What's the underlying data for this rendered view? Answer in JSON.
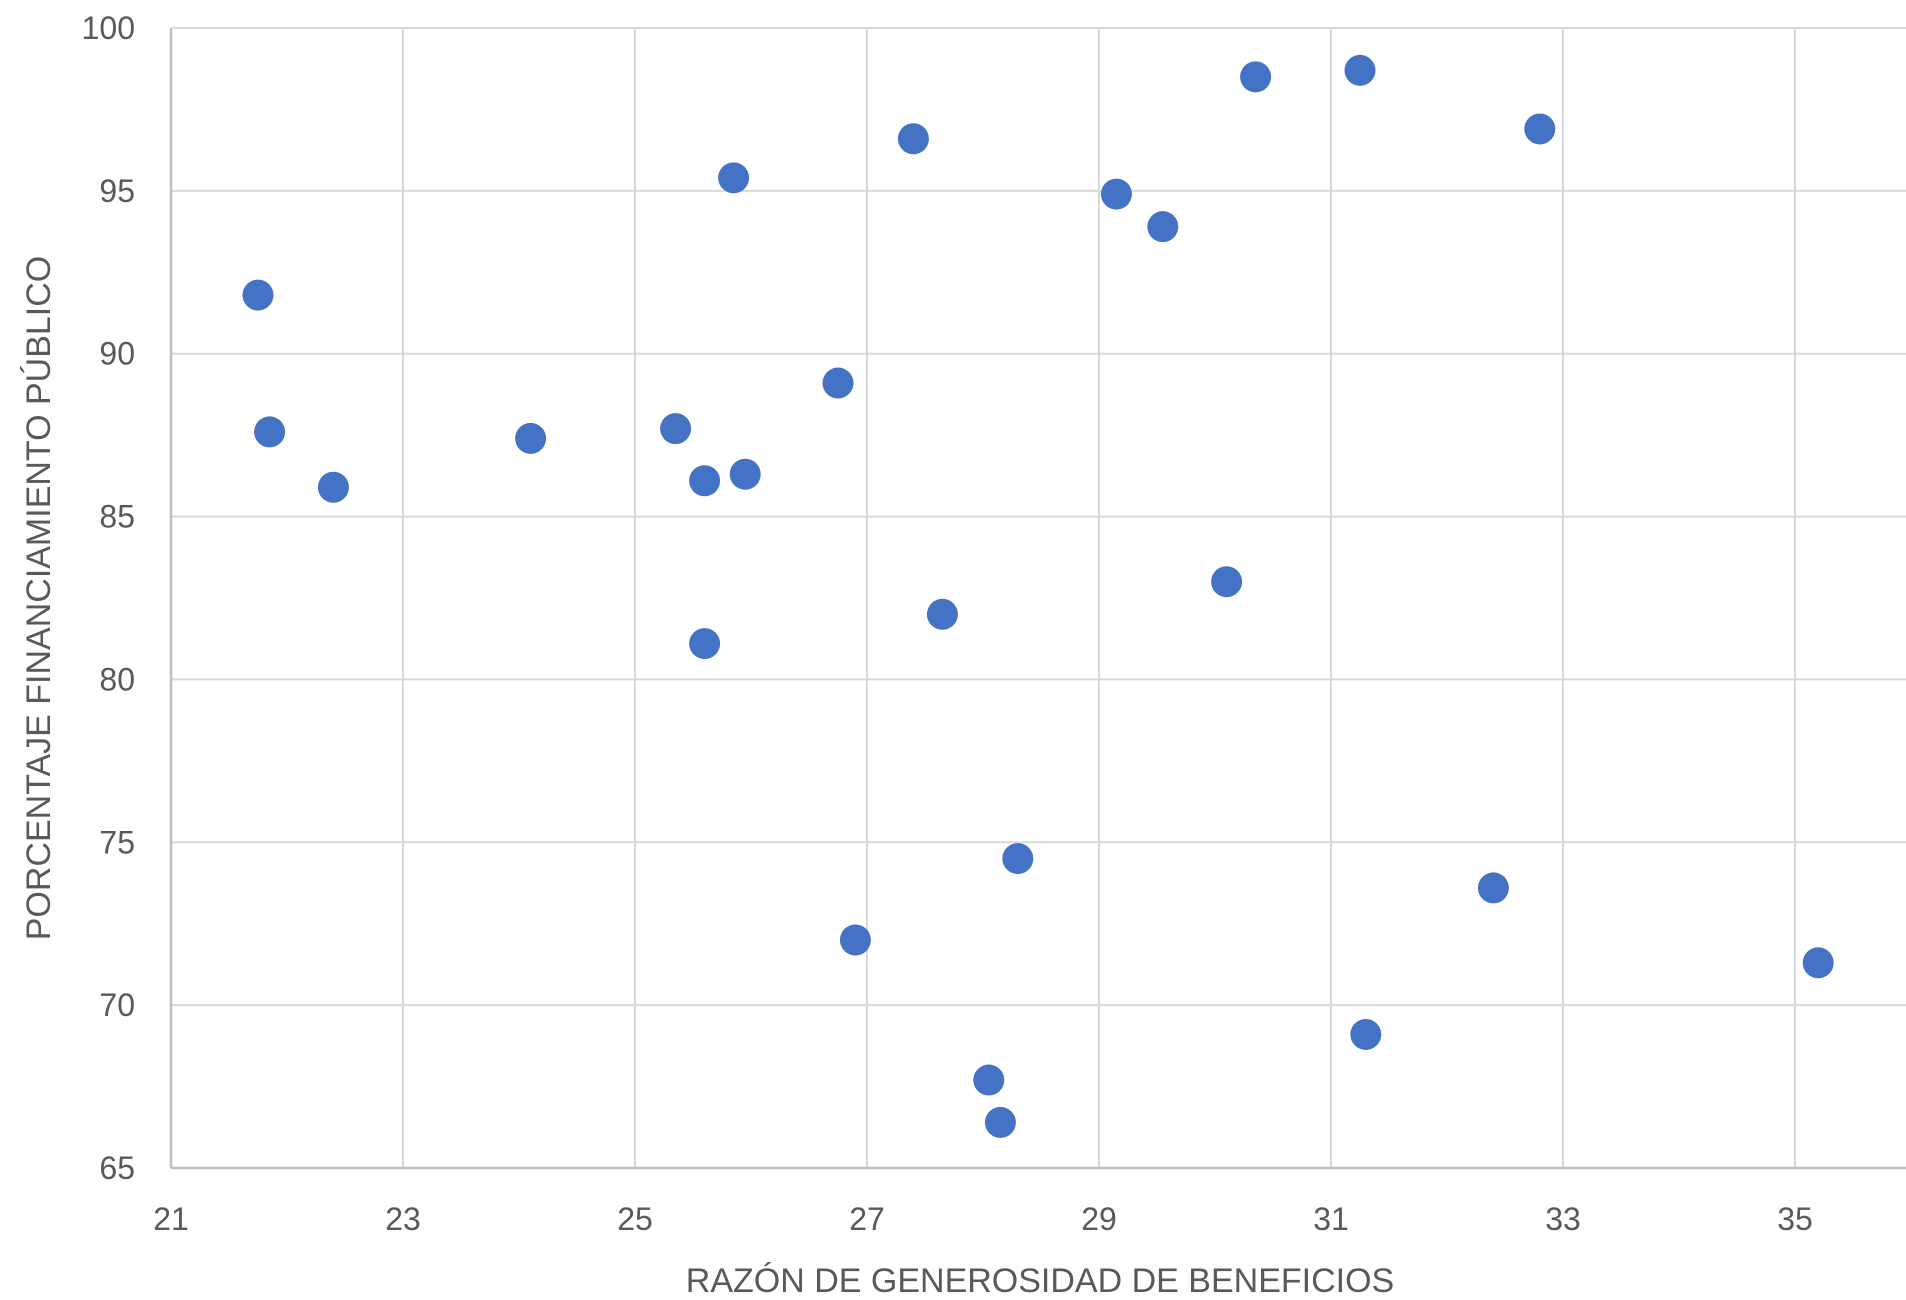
{
  "chart_data": {
    "type": "scatter",
    "title": "",
    "xlabel": "RAZÓN DE GENEROSIDAD DE BENEFICIOS",
    "ylabel": "PORCENTAJE FINANCIAMIENTO PÚBLICO",
    "xlim": [
      21,
      36
    ],
    "ylim": [
      65,
      100
    ],
    "x_ticks": [
      "21",
      "23",
      "25",
      "27",
      "29",
      "31",
      "33",
      "35"
    ],
    "y_ticks": [
      "65",
      "70",
      "75",
      "80",
      "85",
      "90",
      "95",
      "100"
    ],
    "grid": true,
    "marker_color": "#4472C4",
    "series": [
      {
        "x": [
          21.75,
          21.85,
          22.4,
          24.1,
          25.35,
          25.6,
          25.95,
          25.85,
          25.6,
          26.75,
          27.4,
          27.65,
          26.9,
          28.05,
          28.15,
          28.3,
          29.15,
          29.55,
          30.1,
          30.35,
          31.25,
          31.3,
          32.4,
          32.8,
          35.2
        ],
        "y": [
          91.8,
          87.6,
          85.9,
          87.4,
          87.7,
          86.1,
          86.3,
          95.4,
          81.1,
          89.1,
          96.6,
          82.0,
          72.0,
          67.7,
          66.4,
          74.5,
          94.9,
          93.9,
          83.0,
          98.5,
          98.7,
          69.1,
          73.6,
          96.9,
          71.3
        ]
      }
    ]
  }
}
